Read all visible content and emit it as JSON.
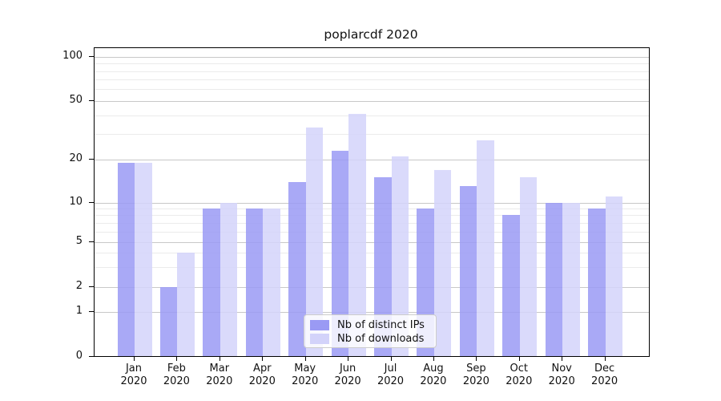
{
  "title": "poplarcdf 2020",
  "chart_data": {
    "type": "bar",
    "title": "poplarcdf 2020",
    "categories": [
      "Jan",
      "Feb",
      "Mar",
      "Apr",
      "May",
      "Jun",
      "Jul",
      "Aug",
      "Sep",
      "Oct",
      "Nov",
      "Dec"
    ],
    "category_year": "2020",
    "series": [
      {
        "name": "Nb of distinct IPs",
        "color": "#9a9af4",
        "values": [
          19,
          2,
          9,
          9,
          14,
          23,
          15,
          9,
          13,
          8,
          10,
          9
        ]
      },
      {
        "name": "Nb of downloads",
        "color": "#d3d3fa",
        "values": [
          19,
          4,
          10,
          9,
          33,
          41,
          21,
          17,
          27,
          15,
          10,
          11
        ]
      }
    ],
    "yscale": "symlog",
    "yticks": [
      0,
      1,
      2,
      5,
      10,
      20,
      50,
      100
    ],
    "minor_yticks": [
      3,
      4,
      6,
      7,
      8,
      9,
      30,
      40,
      60,
      70,
      80,
      90
    ],
    "ylim": [
      0,
      114
    ],
    "grid": "both",
    "legend_position": "lower center"
  },
  "colors": {
    "ips_bar": "#9a9af4",
    "downloads_bar": "#d3d3fa",
    "grid_major": "#c8c8c8",
    "grid_minor": "#ebebeb",
    "spine": "#000000",
    "background": "#ffffff"
  }
}
